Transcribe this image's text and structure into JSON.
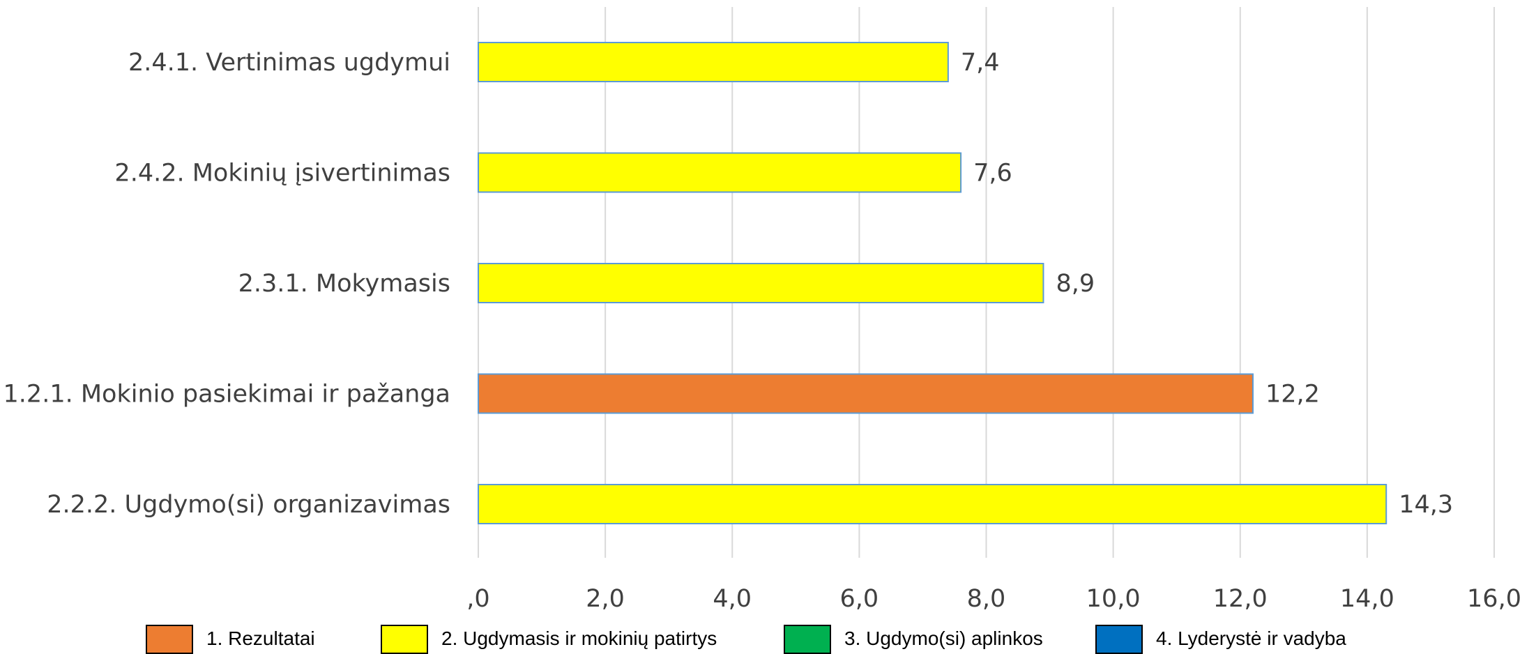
{
  "chart_data": {
    "type": "bar",
    "orientation": "horizontal",
    "categories": [
      "2.4.1. Vertinimas ugdymui",
      "2.4.2. Mokinių įsivertinimas",
      "2.3.1. Mokymasis",
      "1.2.1. Mokinio pasiekimai ir pažanga",
      "2.2.2. Ugdymo(si) organizavimas"
    ],
    "values": [
      7.4,
      7.6,
      8.9,
      12.2,
      14.3
    ],
    "value_labels": [
      "7,4",
      "7,6",
      "8,9",
      "12,2",
      "14,3"
    ],
    "bar_groups": [
      "2. Ugdymasis ir mokinių patirtys",
      "2. Ugdymasis ir mokinių patirtys",
      "2. Ugdymasis ir mokinių patirtys",
      "1. Rezultatai",
      "2. Ugdymasis ir mokinių patirtys"
    ],
    "xlim": [
      0,
      16
    ],
    "xticks": [
      0,
      2,
      4,
      6,
      8,
      10,
      12,
      14,
      16
    ],
    "xtick_labels": [
      ",0",
      "2,0",
      "4,0",
      "6,0",
      "8,0",
      "10,0",
      "12,0",
      "14,0",
      "16,0"
    ],
    "grid": "vertical",
    "legend_position": "bottom",
    "legend": [
      {
        "name": "1. Rezultatai",
        "color": "#ED7D31"
      },
      {
        "name": "2. Ugdymasis ir mokinių patirtys",
        "color": "#FFFF00"
      },
      {
        "name": "3. Ugdymo(si) aplinkos",
        "color": "#00B050"
      },
      {
        "name": "4. Lyderystė ir vadyba",
        "color": "#0070C0"
      }
    ],
    "bar_border_color": "#5B9BD5",
    "grid_color": "#D9D9D9"
  }
}
